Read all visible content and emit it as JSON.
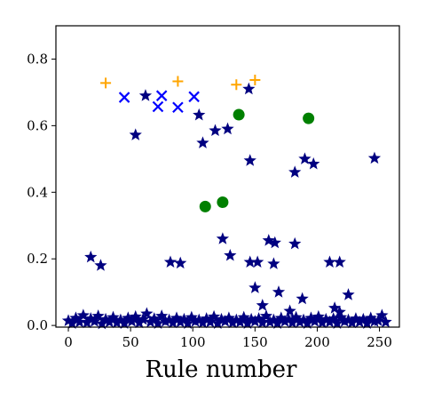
{
  "chart_data": {
    "type": "scatter",
    "title": "",
    "xlabel": "Rule number",
    "ylabel": "",
    "xlim": [
      -10,
      266
    ],
    "ylim": [
      -0.005,
      0.9
    ],
    "grid": false,
    "xticks": [
      0,
      50,
      100,
      150,
      200,
      250
    ],
    "yticks": [
      0.0,
      0.2,
      0.4,
      0.6,
      0.8
    ],
    "xtick_labels": [
      "0",
      "50",
      "100",
      "150",
      "200",
      "250"
    ],
    "ytick_labels": [
      "0.0",
      "0.2",
      "0.4",
      "0.6",
      "0.8"
    ],
    "series": [
      {
        "marker": "star",
        "color": "#000080",
        "points": [
          [
            18,
            0.205
          ],
          [
            26,
            0.18
          ],
          [
            54,
            0.572
          ],
          [
            62,
            0.69
          ],
          [
            82,
            0.19
          ],
          [
            90,
            0.187
          ],
          [
            105,
            0.632
          ],
          [
            108,
            0.548
          ],
          [
            118,
            0.585
          ],
          [
            124,
            0.26
          ],
          [
            128,
            0.59
          ],
          [
            130,
            0.21
          ],
          [
            145,
            0.71
          ],
          [
            146,
            0.495
          ],
          [
            146,
            0.19
          ],
          [
            150,
            0.113
          ],
          [
            152,
            0.19
          ],
          [
            156,
            0.06
          ],
          [
            161,
            0.255
          ],
          [
            165,
            0.185
          ],
          [
            166,
            0.248
          ],
          [
            169,
            0.1
          ],
          [
            178,
            0.043
          ],
          [
            182,
            0.46
          ],
          [
            182,
            0.245
          ],
          [
            188,
            0.08
          ],
          [
            190,
            0.5
          ],
          [
            197,
            0.485
          ],
          [
            210,
            0.19
          ],
          [
            214,
            0.052
          ],
          [
            218,
            0.19
          ],
          [
            218,
            0.04
          ],
          [
            225,
            0.092
          ],
          [
            246,
            0.502
          ],
          [
            0,
            0.014
          ],
          [
            3,
            0.006
          ],
          [
            6,
            0.022
          ],
          [
            9,
            0.01
          ],
          [
            12,
            0.03
          ],
          [
            15,
            0.008
          ],
          [
            18,
            0.02
          ],
          [
            21,
            0.012
          ],
          [
            24,
            0.028
          ],
          [
            27,
            0.005
          ],
          [
            30,
            0.018
          ],
          [
            33,
            0.01
          ],
          [
            36,
            0.024
          ],
          [
            39,
            0.008
          ],
          [
            42,
            0.016
          ],
          [
            45,
            0.006
          ],
          [
            48,
            0.022
          ],
          [
            51,
            0.012
          ],
          [
            54,
            0.026
          ],
          [
            57,
            0.008
          ],
          [
            60,
            0.018
          ],
          [
            63,
            0.035
          ],
          [
            66,
            0.01
          ],
          [
            69,
            0.02
          ],
          [
            72,
            0.006
          ],
          [
            75,
            0.028
          ],
          [
            78,
            0.012
          ],
          [
            81,
            0.016
          ],
          [
            84,
            0.008
          ],
          [
            87,
            0.022
          ],
          [
            90,
            0.01
          ],
          [
            93,
            0.018
          ],
          [
            96,
            0.006
          ],
          [
            99,
            0.024
          ],
          [
            102,
            0.012
          ],
          [
            105,
            0.016
          ],
          [
            108,
            0.008
          ],
          [
            111,
            0.02
          ],
          [
            114,
            0.01
          ],
          [
            117,
            0.026
          ],
          [
            120,
            0.006
          ],
          [
            123,
            0.018
          ],
          [
            126,
            0.012
          ],
          [
            129,
            0.022
          ],
          [
            132,
            0.008
          ],
          [
            135,
            0.016
          ],
          [
            138,
            0.01
          ],
          [
            141,
            0.024
          ],
          [
            144,
            0.006
          ],
          [
            147,
            0.018
          ],
          [
            150,
            0.012
          ],
          [
            153,
            0.02
          ],
          [
            156,
            0.008
          ],
          [
            159,
            0.028
          ],
          [
            162,
            0.01
          ],
          [
            165,
            0.016
          ],
          [
            168,
            0.006
          ],
          [
            171,
            0.022
          ],
          [
            174,
            0.012
          ],
          [
            177,
            0.018
          ],
          [
            180,
            0.008
          ],
          [
            183,
            0.024
          ],
          [
            186,
            0.01
          ],
          [
            189,
            0.016
          ],
          [
            192,
            0.006
          ],
          [
            195,
            0.022
          ],
          [
            198,
            0.012
          ],
          [
            201,
            0.026
          ],
          [
            204,
            0.008
          ],
          [
            207,
            0.018
          ],
          [
            210,
            0.01
          ],
          [
            213,
            0.02
          ],
          [
            216,
            0.006
          ],
          [
            219,
            0.024
          ],
          [
            222,
            0.012
          ],
          [
            225,
            0.016
          ],
          [
            228,
            0.008
          ],
          [
            231,
            0.02
          ],
          [
            234,
            0.01
          ],
          [
            237,
            0.018
          ],
          [
            240,
            0.006
          ],
          [
            243,
            0.022
          ],
          [
            246,
            0.012
          ],
          [
            249,
            0.014
          ],
          [
            252,
            0.03
          ],
          [
            255,
            0.01
          ]
        ]
      },
      {
        "marker": "x",
        "color": "#0000ff",
        "points": [
          [
            45,
            0.685
          ],
          [
            72,
            0.657
          ],
          [
            75,
            0.69
          ],
          [
            88,
            0.655
          ],
          [
            101,
            0.687
          ]
        ]
      },
      {
        "marker": "plus",
        "color": "#ffa500",
        "points": [
          [
            30,
            0.728
          ],
          [
            88,
            0.733
          ],
          [
            135,
            0.723
          ],
          [
            150,
            0.737
          ]
        ]
      },
      {
        "marker": "circle",
        "color": "#008000",
        "points": [
          [
            110,
            0.357
          ],
          [
            124,
            0.37
          ],
          [
            137,
            0.633
          ],
          [
            193,
            0.622
          ]
        ]
      }
    ]
  }
}
